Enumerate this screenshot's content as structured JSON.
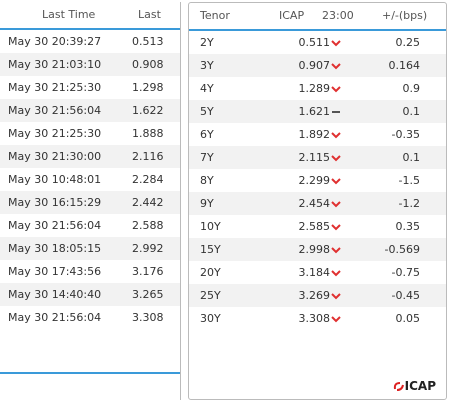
{
  "left_table": {
    "header": [
      "Last Time",
      "Last"
    ],
    "rows": [
      [
        "May 30 20:39:27",
        "0.513"
      ],
      [
        "May 30 21:03:10",
        "0.908"
      ],
      [
        "May 30 21:25:30",
        "1.298"
      ],
      [
        "May 30 21:56:04",
        "1.622"
      ],
      [
        "May 30 21:25:30",
        "1.888"
      ],
      [
        "May 30 21:30:00",
        "2.116"
      ],
      [
        "May 30 10:48:01",
        "2.284"
      ],
      [
        "May 30 16:15:29",
        "2.442"
      ],
      [
        "May 30 21:56:04",
        "2.588"
      ],
      [
        "May 30 18:05:15",
        "2.992"
      ],
      [
        "May 30 17:43:56",
        "3.176"
      ],
      [
        "May 30 14:40:40",
        "3.265"
      ],
      [
        "May 30 21:56:04",
        "3.308"
      ]
    ]
  },
  "right_table": {
    "header": [
      "Tenor",
      "ICAP",
      "23:00",
      "+/-(bps)"
    ],
    "rows": [
      [
        "2Y",
        "0.511",
        "0.25"
      ],
      [
        "3Y",
        "0.907",
        "0.164"
      ],
      [
        "4Y",
        "1.289",
        "0.9"
      ],
      [
        "5Y",
        "1.621",
        "0.1"
      ],
      [
        "6Y",
        "1.892",
        "-0.35"
      ],
      [
        "7Y",
        "2.115",
        "0.1"
      ],
      [
        "8Y",
        "2.299",
        "-1.5"
      ],
      [
        "9Y",
        "2.454",
        "-1.2"
      ],
      [
        "10Y",
        "2.585",
        "0.35"
      ],
      [
        "15Y",
        "2.998",
        "-0.569"
      ],
      [
        "20Y",
        "3.184",
        "-0.75"
      ],
      [
        "25Y",
        "3.269",
        "-0.45"
      ],
      [
        "30Y",
        "3.308",
        "0.05"
      ]
    ],
    "trend": [
      "down",
      "down",
      "down",
      "flat",
      "down",
      "down",
      "down",
      "down",
      "down",
      "down",
      "down",
      "down",
      "down"
    ]
  },
  "footer": {
    "logo": "ICAP"
  }
}
